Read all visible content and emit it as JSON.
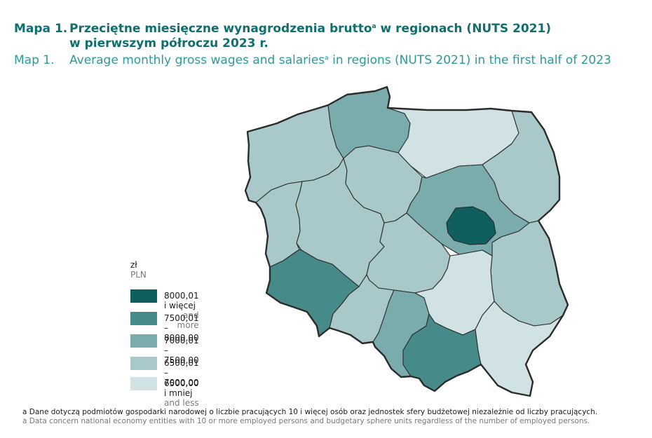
{
  "title": {
    "pl_number": "Mapa 1.",
    "pl_text": "Przeciętne miesięczne wynagrodzenia brutto",
    "pl_sup": "a",
    "pl_text_after": " w regionach (NUTS 2021)",
    "pl_line2": "w pierwszym półroczu 2023 r.",
    "en_number": "Map 1.",
    "en_text": "Average monthly gross wages and salaries",
    "en_sup": "a",
    "en_text_after": " in regions (NUTS 2021) in the first half of 2023"
  },
  "legend": {
    "unit_pl": "zł",
    "unit_en": "PLN",
    "classes": [
      {
        "label": "8000,01 i więcej",
        "label_en": "and more",
        "color": "#0f5f5f"
      },
      {
        "label": "7500,01 – 8000,00",
        "label_en": "",
        "color": "#478a8a"
      },
      {
        "label": "7000,01 – 7500,00",
        "label_en": "",
        "color": "#7aabad"
      },
      {
        "label": "6500,01 – 7000,00",
        "label_en": "",
        "color": "#a9c8c9"
      },
      {
        "label": "6500,00 i mniej",
        "label_en": "and less",
        "color": "#d0e2e3"
      }
    ]
  },
  "footnote": {
    "pl": "a Dane dotyczą podmiotów gospodarki narodowej o liczbie pracujących 10 i więcej osób oraz jednostek sfery budżetowej niezależnie od liczby pracujących.",
    "en": "a Data concern national economy entities with 10 or more employed persons and budgetary sphere units regardless of the number of employed persons."
  },
  "map": {
    "regions": [
      {
        "name": "zachodniopomorskie",
        "class": 3
      },
      {
        "name": "pomorskie",
        "class": 2
      },
      {
        "name": "warminsko-mazurskie",
        "class": 4
      },
      {
        "name": "podlaskie",
        "class": 3
      },
      {
        "name": "lubuskie",
        "class": 3
      },
      {
        "name": "wielkopolskie",
        "class": 3
      },
      {
        "name": "kujawsko-pomorskie",
        "class": 3
      },
      {
        "name": "mazowiecki-regionalny",
        "class": 2
      },
      {
        "name": "warszawski-stoleczny",
        "class": 0
      },
      {
        "name": "lodzkie",
        "class": 3
      },
      {
        "name": "lubelskie",
        "class": 3
      },
      {
        "name": "dolnoslaskie",
        "class": 1
      },
      {
        "name": "opolskie",
        "class": 3
      },
      {
        "name": "slaskie",
        "class": 2
      },
      {
        "name": "swietokrzyskie",
        "class": 4
      },
      {
        "name": "malopolskie",
        "class": 1
      },
      {
        "name": "podkarpackie",
        "class": 4
      }
    ]
  }
}
